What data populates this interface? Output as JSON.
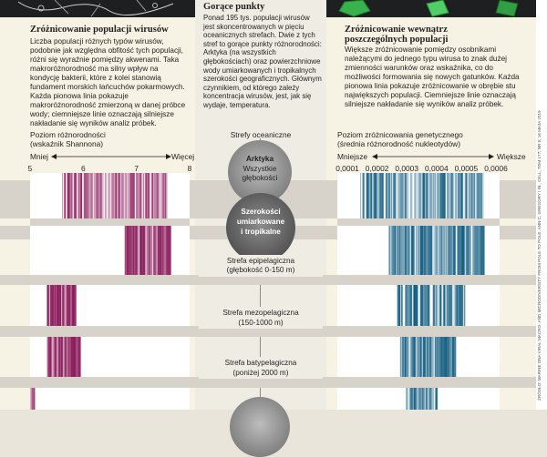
{
  "left": {
    "title": "Zróżnicowanie populacji wirusów",
    "paragraph": "Liczba populacji różnych typów wirusów, podobnie jak względna obfitość tych populacji, różni się wyraźnie pomiędzy akwenami. Taka makroróżnorodność ma silny wpływ na kondycję bakterii, które z kolei stanowią fundament morskich łańcuchów pokarmowych. Każda pionowa linia pokazuje makroróżnorodność zmierzoną w danej próbce wody; ciemniejsze linie oznaczają silniejsze nakładanie się wyników analiz próbek.",
    "axis_title": "Poziom różnorodności",
    "axis_subtitle": "(wskaźnik Shannona)",
    "less": "Mniej",
    "more": "Więcej",
    "ticks": [
      "5",
      "6",
      "7",
      "8"
    ],
    "color": "#8a1a5a"
  },
  "center": {
    "title": "Gorące punkty",
    "paragraph": "Ponad 195 tys. populacji wirusów jest skoncentrowanych w pięciu oceanicznych strefach. Dwie z tych stref to gorące punkty różnorodności: Arktyka (na wszystkich głębokościach) oraz powierzchniowe wody umiarkowanych i tropikalnych szerokości geograficznych. Głównym czynnikiem, od którego zależy koncentracja wirusów, jest, jak się wydaje, temperatura.",
    "zones_title": "Strefy oceaniczne",
    "arktyka_1": "Arktyka",
    "arktyka_2": "Wszystkie",
    "arktyka_3": "głębokości",
    "temperate_1": "Szerokości",
    "temperate_2": "umiarkowane",
    "temperate_3": "i tropikalne",
    "epi_1": "Strefa epipelagiczna",
    "epi_2": "(głębokość 0-150 m)",
    "meso_1": "Strefa mezopelagiczna",
    "meso_2": "(150-1000 m)",
    "bathy_1": "Strefa batypelagiczna",
    "bathy_2": "(poniżej 2000 m)"
  },
  "right": {
    "title_1": "Zróżnicowanie wewnątrz",
    "title_2": "poszczególnych populacji",
    "paragraph": "Większe zróżnicowanie pomiędzy osobnikami należącymi do jednego typu wirusa to znak dużej zmienności warunków oraz wskaźnika, co do możliwości formowania się nowych gatunków. Każda pionowa linia pokazuje zróżnicowanie w obrębie stu największych populacji. Ciemniejsze linie oznaczają silniejsze nakładanie się wyników analiz próbek.",
    "axis_title": "Poziom zróżnicowania genetycznego",
    "axis_subtitle": "(średnia różnorodność nukleotydów)",
    "less": "Mniejsze",
    "more": "Większe",
    "ticks": [
      "0,0001",
      "0,0002",
      "0,0003",
      "0,0004",
      "0,0005",
      "0,0006"
    ],
    "color": "#0e5a7e"
  },
  "credit": "ŹRÓDŁO: MARINE DNA VIRAL MACRO- AND MICRODIVERSITY FROM POLE TO POLE. ANN C. GREGORY I IN., CELL, TOM 177; NR 5; 16 MAJA 2019"
}
